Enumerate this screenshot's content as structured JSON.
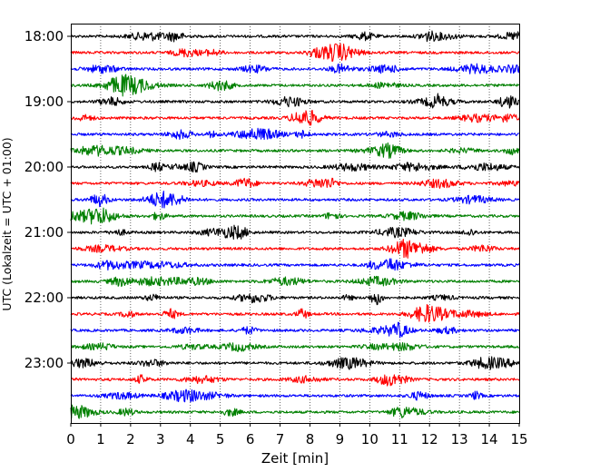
{
  "chart_data": {
    "type": "line",
    "title": "",
    "xlabel": "Zeit  [min]",
    "ylabel": "UTC (Lokalzeit = UTC + 01:00)",
    "xlim": [
      0,
      15
    ],
    "x_ticks": [
      0,
      1,
      2,
      3,
      4,
      5,
      6,
      7,
      8,
      9,
      10,
      11,
      12,
      13,
      14,
      15
    ],
    "y_tick_labels": [
      "18:00",
      "19:00",
      "20:00",
      "21:00",
      "22:00",
      "23:00"
    ],
    "grid": "vertical dotted at each minute",
    "trace_colors": [
      "#000000",
      "#ff0000",
      "#0000ff",
      "#008000"
    ],
    "series": [
      {
        "start": "18:00"
      },
      {
        "start": "18:15"
      },
      {
        "start": "18:30"
      },
      {
        "start": "18:45"
      },
      {
        "start": "19:00"
      },
      {
        "start": "19:15"
      },
      {
        "start": "19:30"
      },
      {
        "start": "19:45"
      },
      {
        "start": "20:00"
      },
      {
        "start": "20:15"
      },
      {
        "start": "20:30"
      },
      {
        "start": "20:45"
      },
      {
        "start": "21:00"
      },
      {
        "start": "21:15"
      },
      {
        "start": "21:30"
      },
      {
        "start": "21:45"
      },
      {
        "start": "22:00"
      },
      {
        "start": "22:15"
      },
      {
        "start": "22:30"
      },
      {
        "start": "22:45"
      },
      {
        "start": "23:00"
      },
      {
        "start": "23:15"
      },
      {
        "start": "23:30"
      },
      {
        "start": "23:45"
      }
    ]
  }
}
